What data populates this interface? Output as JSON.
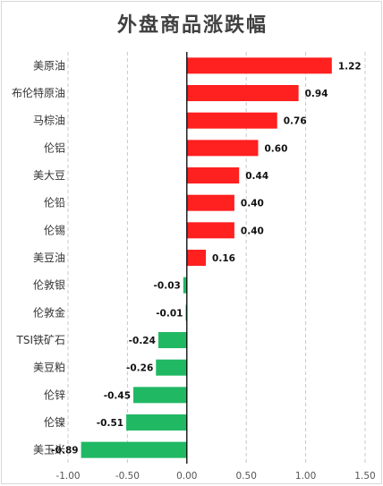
{
  "chart_data": {
    "type": "bar",
    "orientation": "horizontal",
    "title": "外盘商品涨跌幅",
    "xlabel": "",
    "ylabel": "",
    "xlim": [
      -1.0,
      1.5
    ],
    "x_ticks": [
      "-1.00",
      "-0.50",
      "0.00",
      "0.50",
      "1.00",
      "1.50"
    ],
    "x_tick_values": [
      -1.0,
      -0.5,
      0.0,
      0.5,
      1.0,
      1.5
    ],
    "grid": "vertical-dashed",
    "legend": "none",
    "categories": [
      "美原油",
      "布伦特原油",
      "马棕油",
      "伦铝",
      "美大豆",
      "伦铅",
      "伦锡",
      "美豆油",
      "伦敦银",
      "伦敦金",
      "TSI铁矿石",
      "美豆粕",
      "伦锌",
      "伦镍",
      "美玉米"
    ],
    "values": [
      1.22,
      0.94,
      0.76,
      0.6,
      0.44,
      0.4,
      0.4,
      0.16,
      -0.03,
      -0.01,
      -0.24,
      -0.26,
      -0.45,
      -0.51,
      -0.89
    ],
    "value_labels": [
      "1.22",
      "0.94",
      "0.76",
      "0.60",
      "0.44",
      "0.40",
      "0.40",
      "0.16",
      "-0.03",
      "-0.01",
      "-0.24",
      "-0.26",
      "-0.45",
      "-0.51",
      "-0.89"
    ],
    "colors": {
      "positive": "#ff2020",
      "negative": "#21b864",
      "axis": "#000000",
      "grid": "#c8c8c8"
    }
  }
}
